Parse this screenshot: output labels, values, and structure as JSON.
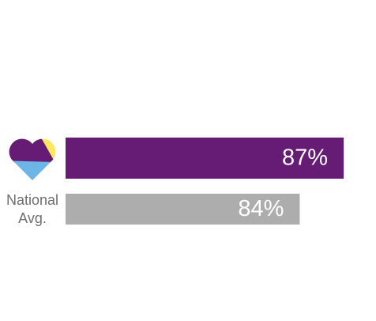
{
  "chart_data": {
    "type": "bar",
    "orientation": "horizontal",
    "categories": [
      null,
      "National Avg."
    ],
    "values": [
      87,
      84
    ],
    "value_labels": [
      "87%",
      "84%"
    ],
    "colors": [
      "#661c74",
      "#adadad"
    ],
    "xlim": [
      68,
      87
    ]
  }
}
